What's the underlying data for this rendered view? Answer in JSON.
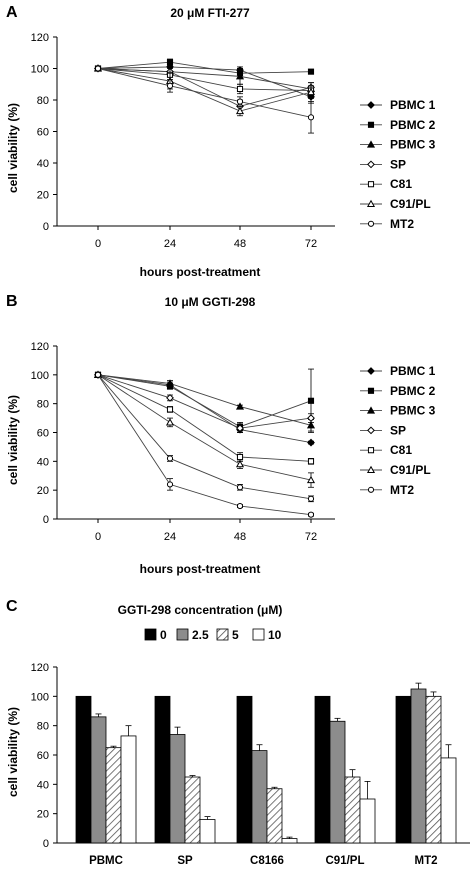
{
  "figure": {
    "panels": [
      {
        "letter": "A",
        "title": "20 μM FTI-277"
      },
      {
        "letter": "B",
        "title": "10 μM GGTI-298"
      },
      {
        "letter": "C",
        "title": "GGTI-298 concentration (μM)"
      }
    ]
  },
  "chart_data": [
    {
      "type": "line",
      "title": "20 μM FTI-277",
      "xlabel": "hours post-treatment",
      "ylabel": "cell viability (%)",
      "x": [
        0,
        24,
        48,
        72
      ],
      "ylim": [
        0,
        120
      ],
      "yticks": [
        0,
        20,
        40,
        60,
        80,
        100,
        120
      ],
      "legend_position": "right",
      "series": [
        {
          "name": "PBMC 1",
          "marker": "diamond-filled",
          "values": [
            100,
            101,
            99,
            82
          ],
          "errors": [
            0,
            3,
            2,
            4
          ]
        },
        {
          "name": "PBMC 2",
          "marker": "square-filled",
          "values": [
            100,
            104,
            97,
            98
          ],
          "errors": [
            0,
            2,
            3,
            1
          ]
        },
        {
          "name": "PBMC 3",
          "marker": "triangle-filled",
          "values": [
            100,
            98,
            95,
            87
          ],
          "errors": [
            0,
            3,
            5,
            4
          ]
        },
        {
          "name": "SP",
          "marker": "diamond-open",
          "values": [
            100,
            98,
            76,
            88
          ],
          "errors": [
            0,
            3,
            4,
            3
          ]
        },
        {
          "name": "C81",
          "marker": "square-open",
          "values": [
            100,
            96,
            87,
            86
          ],
          "errors": [
            0,
            4,
            3,
            3
          ]
        },
        {
          "name": "C91/PL",
          "marker": "triangle-open",
          "values": [
            100,
            92,
            73,
            85
          ],
          "errors": [
            0,
            5,
            3,
            4
          ]
        },
        {
          "name": "MT2",
          "marker": "circle-open",
          "values": [
            100,
            89,
            79,
            69
          ],
          "errors": [
            0,
            4,
            3,
            10
          ]
        }
      ]
    },
    {
      "type": "line",
      "title": "10 μM GGTI-298",
      "xlabel": "hours post-treatment",
      "ylabel": "cell viability (%)",
      "x": [
        0,
        24,
        48,
        72
      ],
      "ylim": [
        0,
        120
      ],
      "yticks": [
        0,
        20,
        40,
        60,
        80,
        100,
        120
      ],
      "legend_position": "right",
      "series": [
        {
          "name": "PBMC 1",
          "marker": "diamond-filled",
          "values": [
            100,
            93,
            62,
            53
          ],
          "errors": [
            0,
            2,
            2,
            1
          ]
        },
        {
          "name": "PBMC 2",
          "marker": "square-filled",
          "values": [
            100,
            92,
            64,
            82
          ],
          "errors": [
            0,
            2,
            3,
            22
          ]
        },
        {
          "name": "PBMC 3",
          "marker": "triangle-filled",
          "values": [
            100,
            94,
            78,
            65
          ],
          "errors": [
            0,
            2,
            1,
            4
          ]
        },
        {
          "name": "SP",
          "marker": "diamond-open",
          "values": [
            100,
            84,
            63,
            70
          ],
          "errors": [
            0,
            2,
            3,
            3
          ]
        },
        {
          "name": "C81",
          "marker": "square-open",
          "values": [
            100,
            76,
            43,
            40
          ],
          "errors": [
            0,
            2,
            3,
            2
          ]
        },
        {
          "name": "C91/PL",
          "marker": "triangle-open",
          "values": [
            100,
            67,
            38,
            27
          ],
          "errors": [
            0,
            3,
            3,
            5
          ]
        },
        {
          "name": "MT2",
          "marker": "circle-open",
          "values": [
            100,
            42,
            22,
            14
          ],
          "errors": [
            0,
            2,
            2,
            2
          ]
        },
        {
          "name": "",
          "marker": "circle-open",
          "values": [
            100,
            24,
            9,
            3
          ],
          "errors": [
            0,
            4,
            1,
            1
          ]
        }
      ]
    },
    {
      "type": "bar",
      "title": "GGTI-298 concentration (μM)",
      "xlabel": "",
      "ylabel": "cell viability (%)",
      "categories": [
        "PBMC",
        "SP",
        "C8166",
        "C91/PL",
        "MT2"
      ],
      "ylim": [
        0,
        120
      ],
      "yticks": [
        0,
        20,
        40,
        60,
        80,
        100,
        120
      ],
      "legend_position": "top",
      "series": [
        {
          "name": "0",
          "fill": "#000000",
          "values": [
            100,
            100,
            100,
            100,
            100
          ],
          "errors": [
            0,
            0,
            0,
            0,
            0
          ]
        },
        {
          "name": "2.5",
          "fill": "#8c8c8c",
          "values": [
            86,
            74,
            63,
            83,
            105
          ],
          "errors": [
            2,
            5,
            4,
            2,
            4
          ]
        },
        {
          "name": "5",
          "fill": "hatch",
          "values": [
            65,
            45,
            37,
            45,
            100
          ],
          "errors": [
            1,
            1,
            1,
            5,
            3
          ]
        },
        {
          "name": "10",
          "fill": "#ffffff",
          "values": [
            73,
            16,
            3,
            30,
            58
          ],
          "errors": [
            7,
            2,
            1,
            12,
            9
          ]
        }
      ]
    }
  ]
}
